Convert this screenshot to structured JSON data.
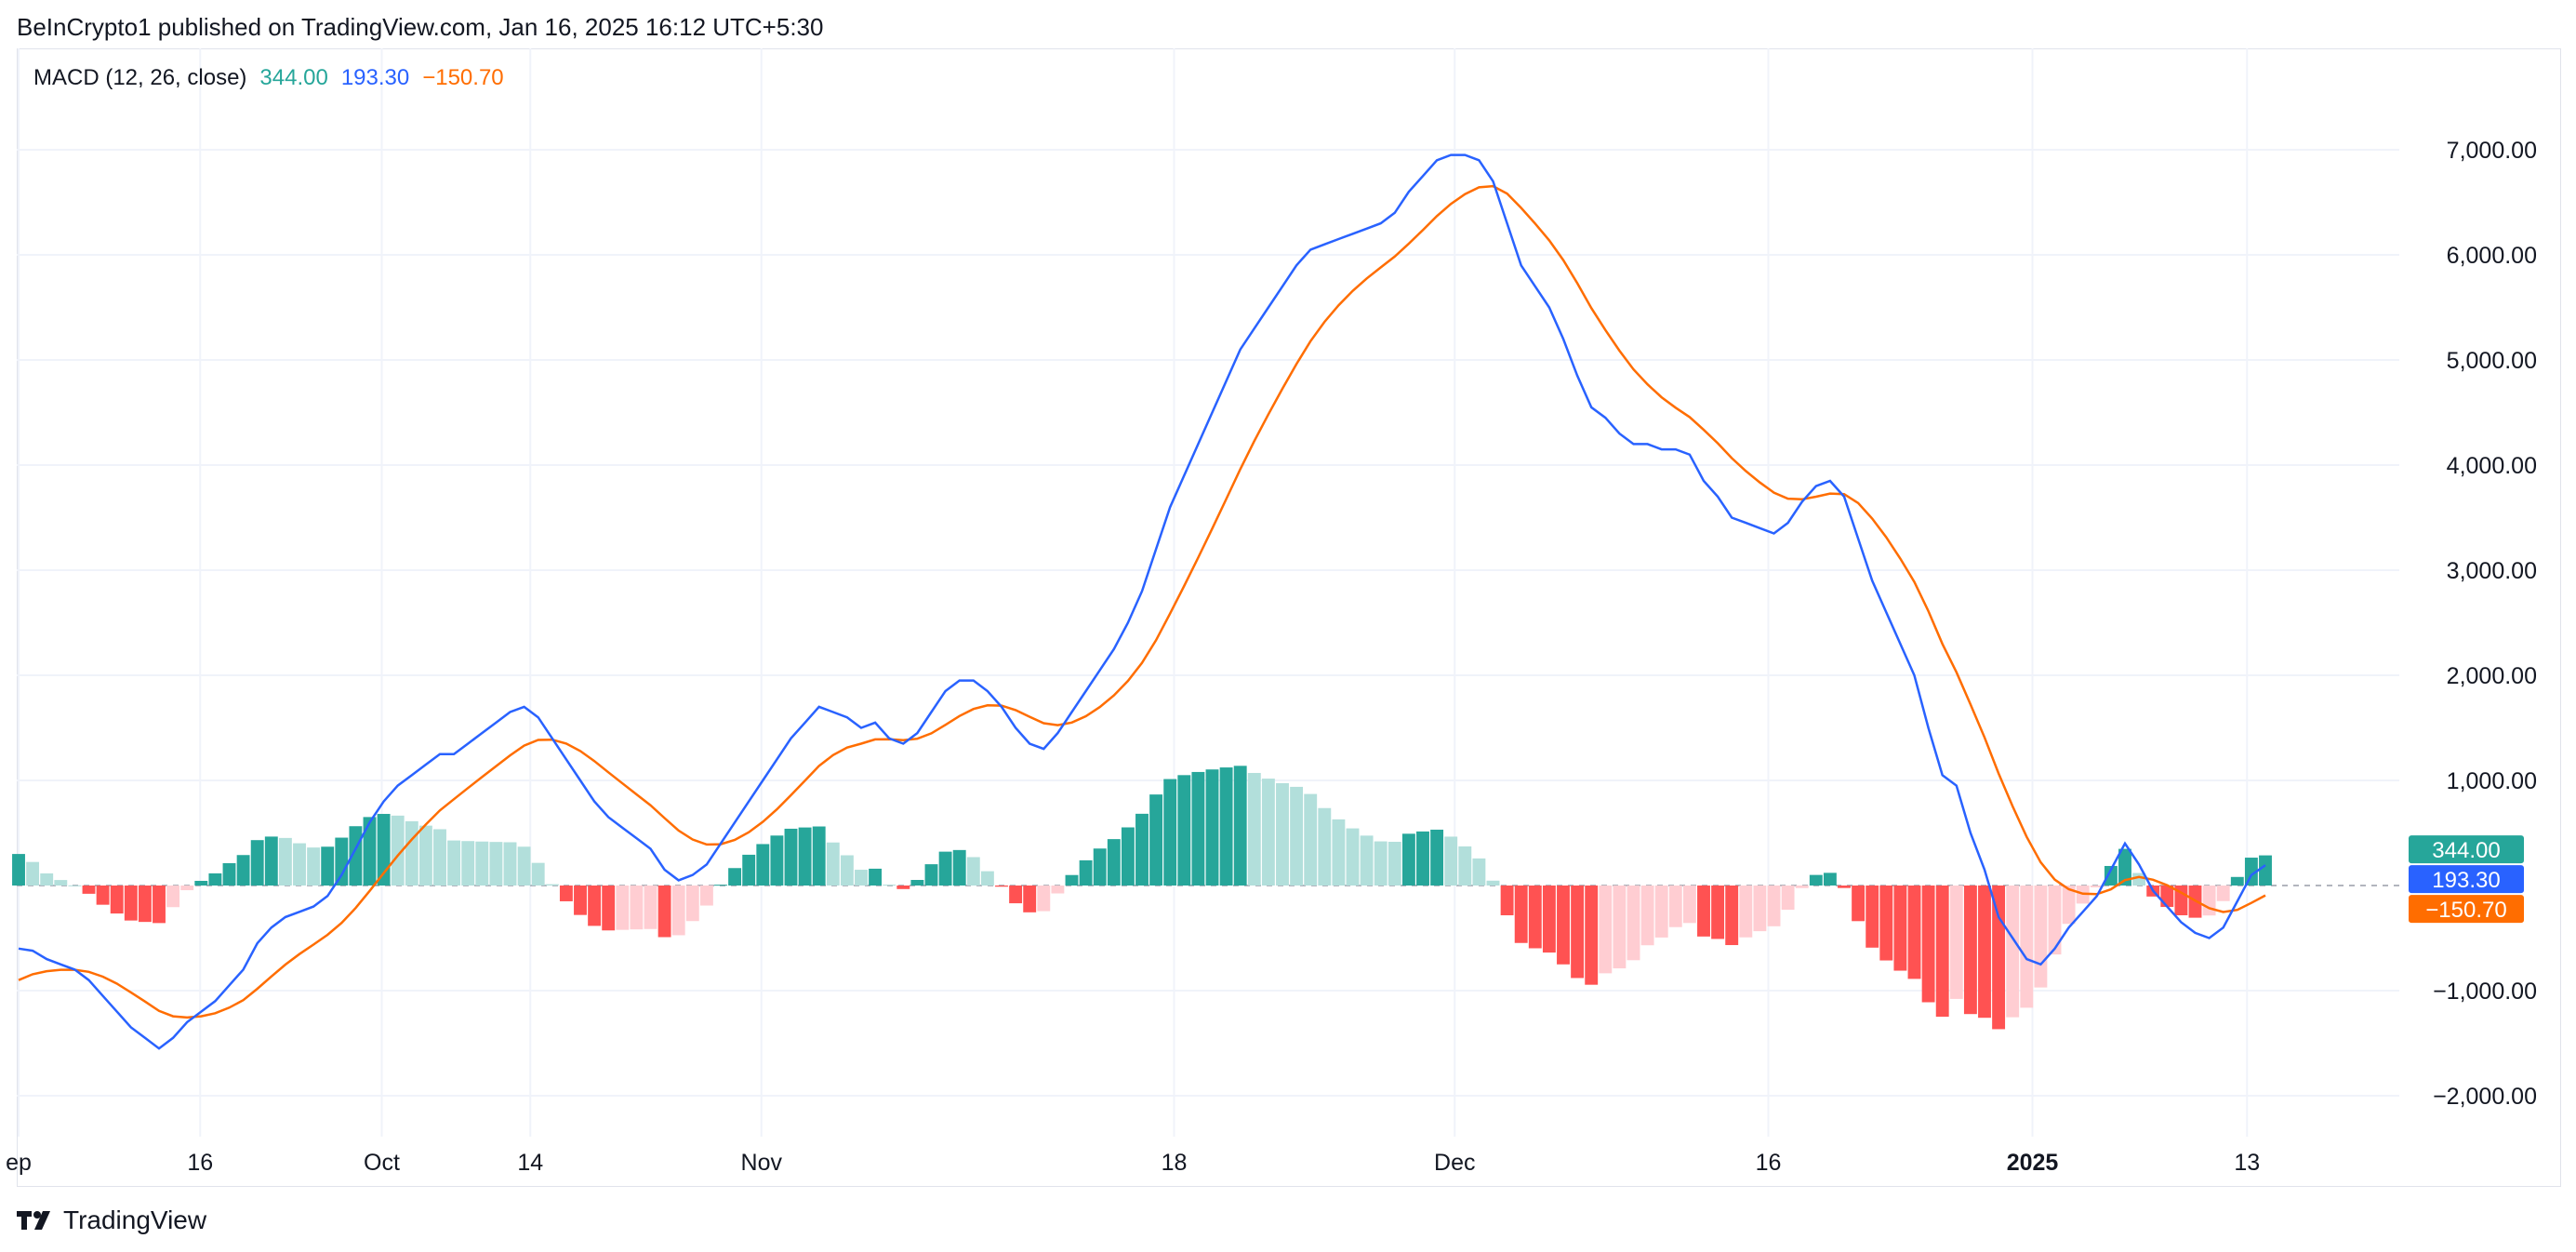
{
  "header": {
    "published_text": "BeInCrypto1 published on TradingView.com, Jan 16, 2025 16:12 UTC+5:30"
  },
  "indicator": {
    "name": "MACD (12, 26, close)",
    "histogram_value": "344.00",
    "macd_value": "193.30",
    "signal_value": "−150.70"
  },
  "colors": {
    "macd_line": "#2962ff",
    "signal_line": "#ff6d00",
    "hist_pos_strong": "#26a69a",
    "hist_pos_weak": "#b2dfdb",
    "hist_neg_strong": "#ff5252",
    "hist_neg_weak": "#ffcdd2",
    "grid": "#f0f3fa",
    "text": "#131722"
  },
  "footer": {
    "brand": "TradingView"
  },
  "chart_data": {
    "type": "line",
    "title": "MACD (12, 26, close)",
    "ylim": [
      -2500,
      7500
    ],
    "yticks": [
      7000,
      6000,
      5000,
      4000,
      3000,
      2000,
      1000,
      -1000,
      -2000
    ],
    "ytick_labels": [
      "7,000.00",
      "6,000.00",
      "5,000.00",
      "4,000.00",
      "3,000.00",
      "2,000.00",
      "1,000.00",
      "−1,000.00",
      "−2,000.00"
    ],
    "xtick_labels": [
      {
        "label": "ep",
        "bar": 0,
        "bold": false
      },
      {
        "label": "16",
        "bar": 11,
        "bold": false
      },
      {
        "label": "Oct",
        "bar": 22,
        "bold": false
      },
      {
        "label": "14",
        "bar": 31,
        "bold": false
      },
      {
        "label": "Nov",
        "bar": 45,
        "bold": false
      },
      {
        "label": "18",
        "bar": 70,
        "bold": false
      },
      {
        "label": "Dec",
        "bar": 87,
        "bold": false
      },
      {
        "label": "16",
        "bar": 106,
        "bold": false
      },
      {
        "label": "2025",
        "bar": 122,
        "bold": true
      },
      {
        "label": "13",
        "bar": 135,
        "bold": false
      }
    ],
    "bar_count": 144,
    "last_bar": 138,
    "grid": true,
    "series": [
      {
        "name": "MACD",
        "values": [
          -600,
          -620,
          -700,
          -750,
          -800,
          -900,
          -1050,
          -1200,
          -1350,
          -1450,
          -1550,
          -1450,
          -1300,
          -1200,
          -1100,
          -950,
          -800,
          -550,
          -400,
          -300,
          -250,
          -200,
          -100,
          100,
          350,
          600,
          800,
          950,
          1050,
          1150,
          1250,
          1250,
          1350,
          1450,
          1550,
          1650,
          1700,
          1600,
          1400,
          1200,
          1000,
          800,
          650,
          550,
          450,
          350,
          150,
          50,
          100,
          200,
          400,
          600,
          800,
          1000,
          1200,
          1400,
          1550,
          1700,
          1650,
          1600,
          1500,
          1550,
          1400,
          1350,
          1450,
          1650,
          1850,
          1950,
          1950,
          1850,
          1700,
          1500,
          1350,
          1300,
          1450,
          1650,
          1850,
          2050,
          2250,
          2500,
          2800,
          3200,
          3600,
          3900,
          4200,
          4500,
          4800,
          5100,
          5300,
          5500,
          5700,
          5900,
          6050,
          6100,
          6150,
          6200,
          6250,
          6300,
          6400,
          6600,
          6750,
          6900,
          6950,
          6950,
          6900,
          6700,
          6300,
          5900,
          5700,
          5500,
          5200,
          4850,
          4550,
          4450,
          4300,
          4200,
          4200,
          4150,
          4150,
          4100,
          3850,
          3700,
          3500,
          3450,
          3400,
          3350,
          3450,
          3650,
          3800,
          3850,
          3700,
          3300,
          2900,
          2600,
          2300,
          2000,
          1500,
          1050,
          950,
          500,
          150,
          -300,
          -500,
          -700,
          -750,
          -600,
          -400,
          -250,
          -100,
          150,
          400,
          200,
          -50,
          -200,
          -350,
          -450,
          -500,
          -400,
          -150,
          100,
          193.3
        ],
        "note": "ignored"
      }
    ]
  }
}
